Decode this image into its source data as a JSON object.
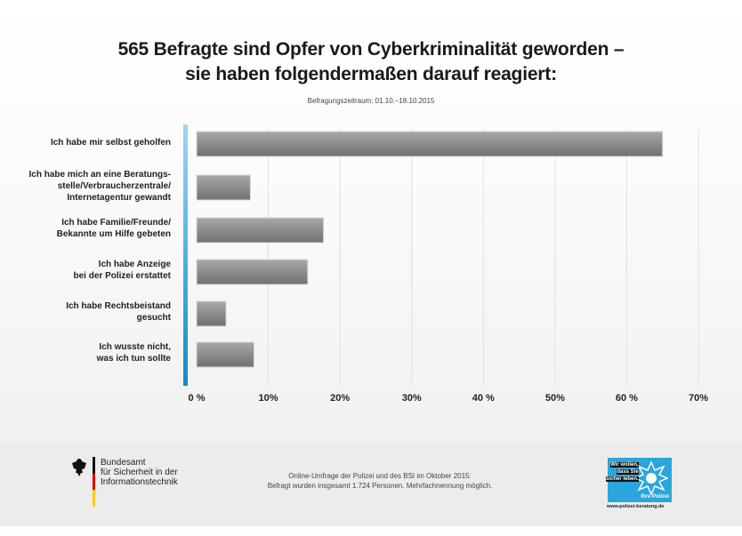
{
  "chart_data": {
    "type": "bar",
    "orientation": "horizontal",
    "title": "565 Befragte sind Opfer von Cyberkriminalität geworden –\nsie haben folgendermaßen darauf reagiert:",
    "subtitle": "Befragungszeitraum: 01.10.–18.10.2015",
    "categories": [
      "Ich habe mir selbst geholfen",
      "Ich habe mich an eine Beratungs-\nstelle/Verbraucherzentrale/\nInternetagentur gewandt",
      "Ich habe Familie/Freunde/\nBekannte um Hilfe gebeten",
      "Ich habe Anzeige\nbei der Polizei erstattet",
      "Ich habe Rechtsbeistand\ngesucht",
      "Ich wusste nicht,\nwas ich tun sollte"
    ],
    "values": [
      65,
      7.5,
      17.7,
      15.5,
      4.1,
      8
    ],
    "xlim": [
      0,
      70
    ],
    "xticks": [
      "0 %",
      "10%",
      "20%",
      "30%",
      "40 %",
      "50%",
      "60 %",
      "70%"
    ],
    "grid": true,
    "bar_color": "#8a8a8a",
    "axis_accent_color": "#2aa6dc"
  },
  "footer": {
    "bsi_name": "Bundesamt\nfür Sicherheit in der\nInformationstechnik",
    "note": "Online-Umfrage der Polizei und des BSI im Oktober 2015:\nBefragt wurden insgesamt 1.724 Personen. Mehrfachnennung möglich.",
    "police_slogan": [
      "Wir wollen,",
      "dass Sie",
      "sicher leben."
    ],
    "police_name": "Ihre Polizei",
    "url": "www.polizei-beratung.de"
  }
}
